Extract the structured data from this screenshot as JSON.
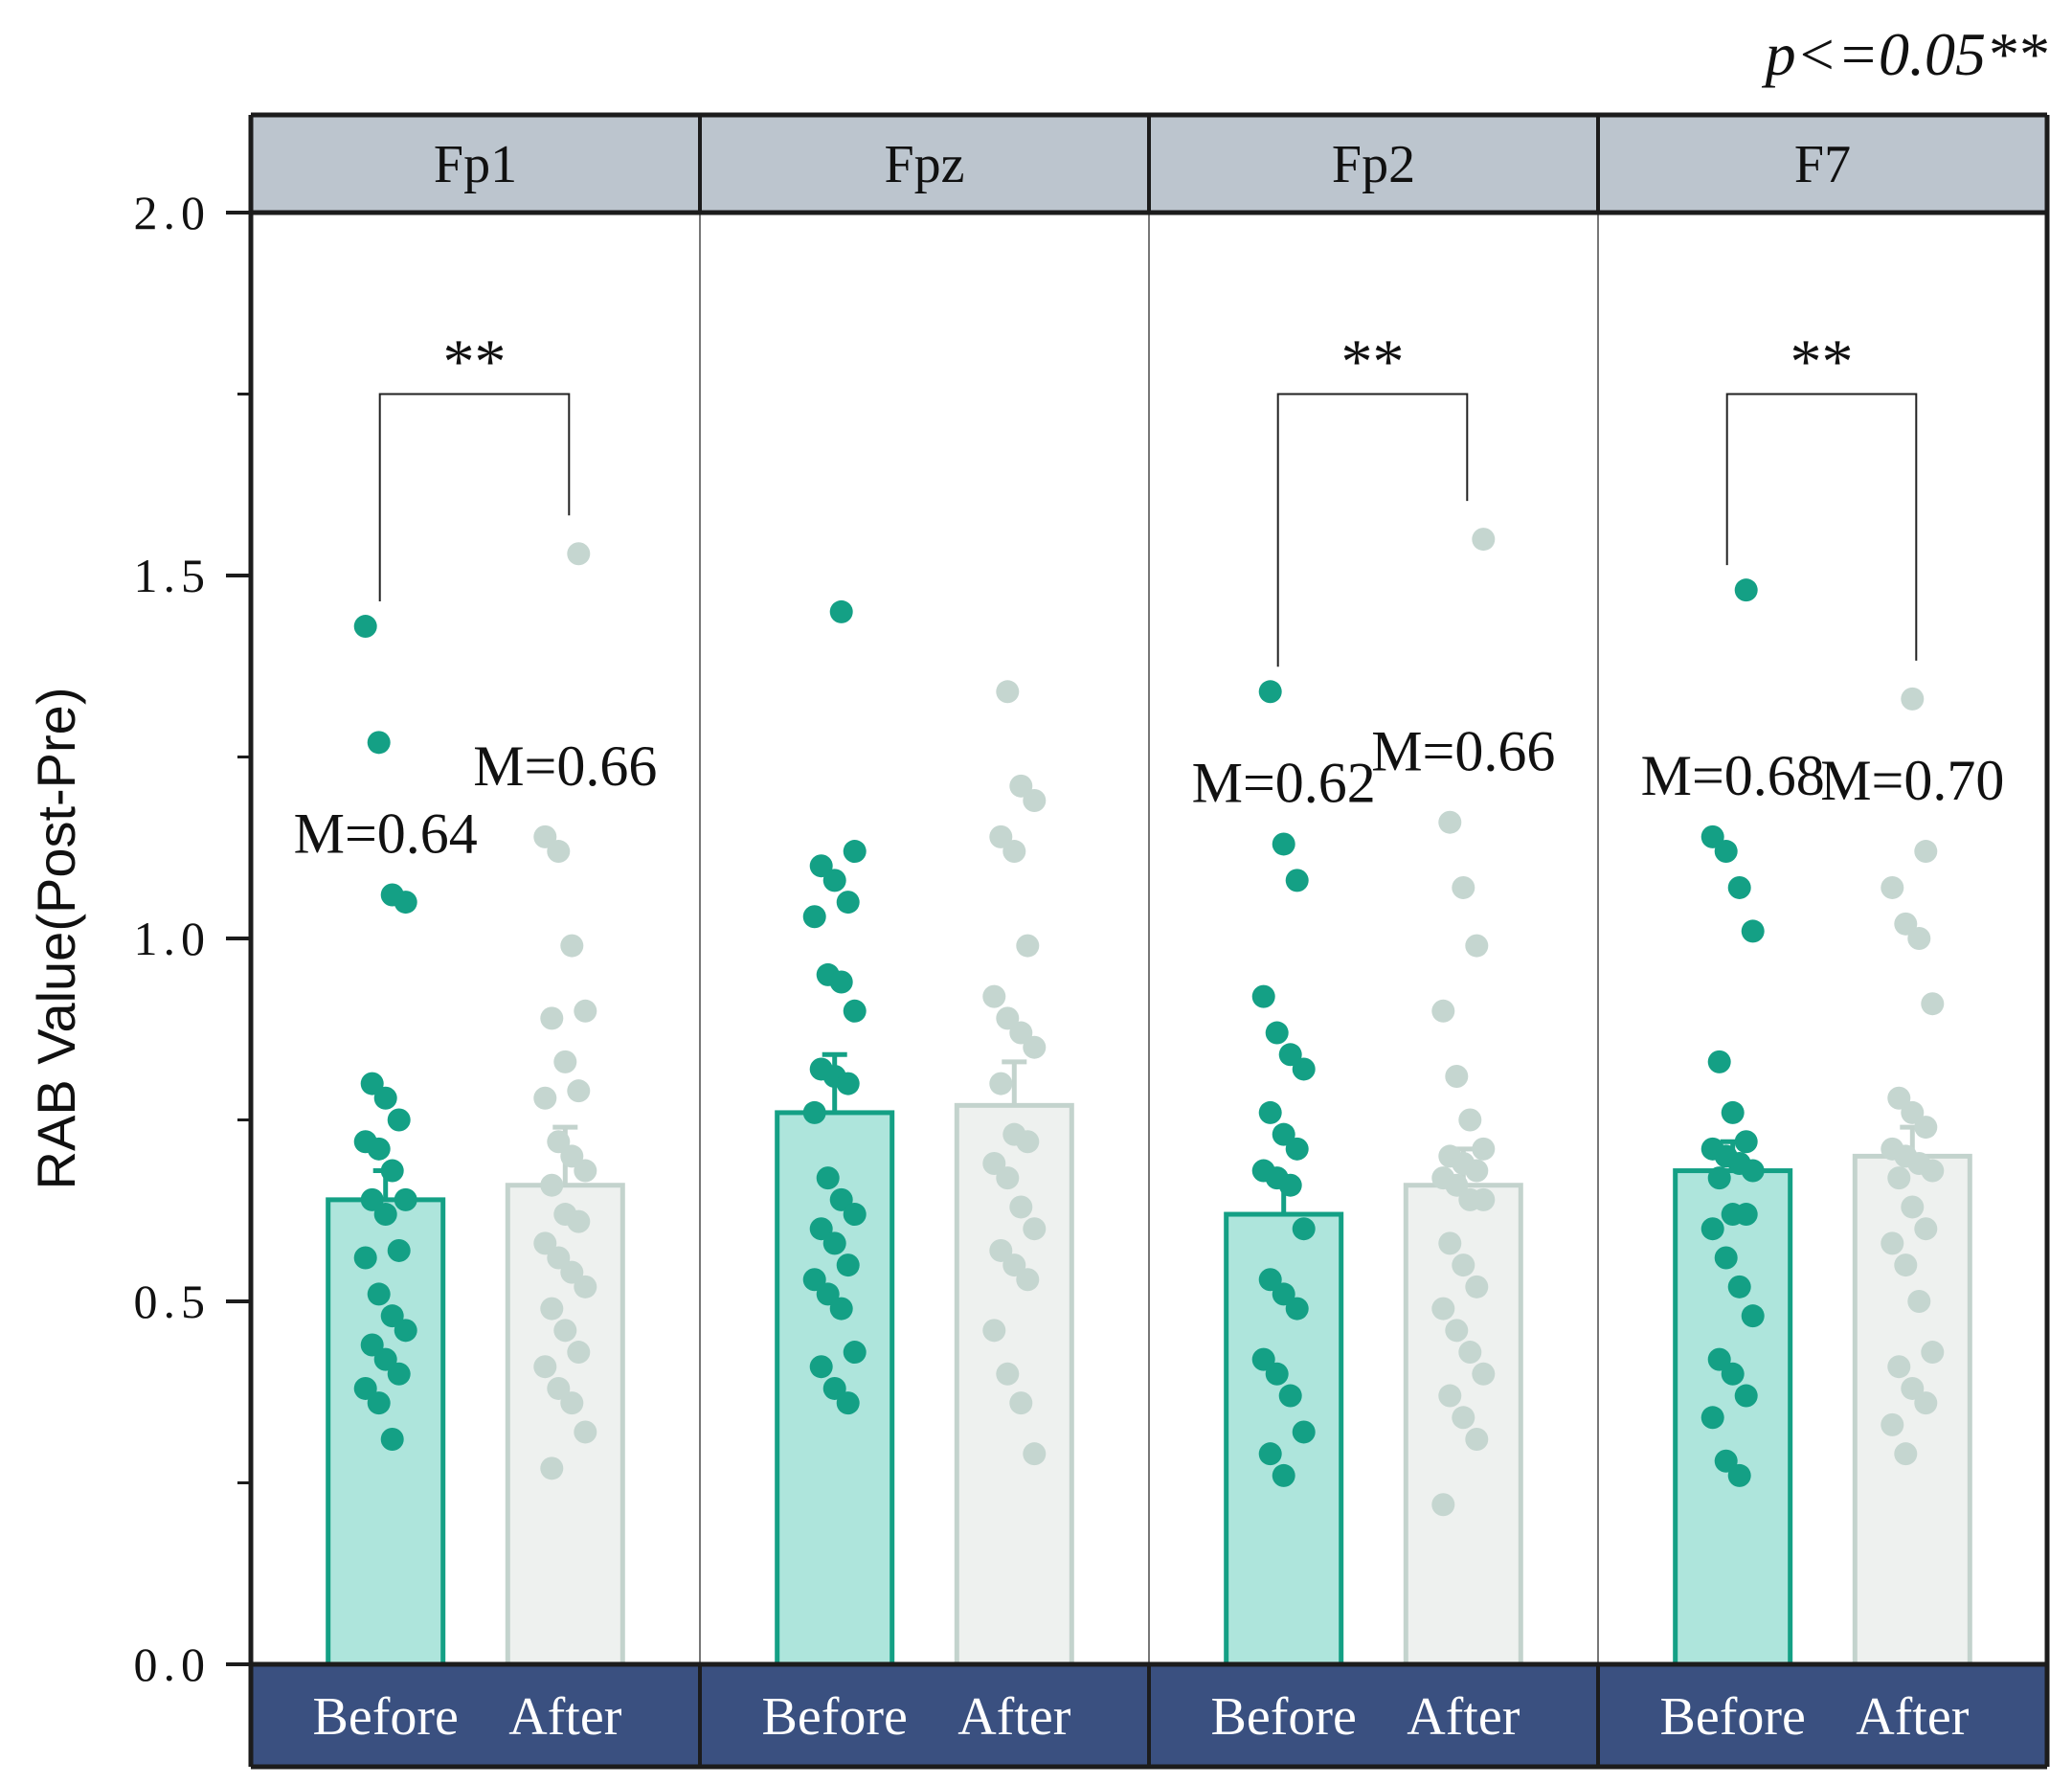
{
  "chart_data": {
    "type": "bar",
    "significance_note": "p<=0.05**",
    "ylabel": "RAB Value(Post-Pre)",
    "ylim": [
      0,
      2.0
    ],
    "y_ticks": [
      {
        "value": 0.0,
        "label": "0.0"
      },
      {
        "value": 0.5,
        "label": "0.5"
      },
      {
        "value": 1.0,
        "label": "1.0"
      },
      {
        "value": 1.5,
        "label": "1.5"
      },
      {
        "value": 2.0,
        "label": "2.0"
      }
    ],
    "grid": false,
    "colors": {
      "before_fill": "#aee5dc",
      "before_stroke": "#14a085",
      "before_dot": "#14a085",
      "after_fill": "#eef1ef",
      "after_stroke": "#c3d3cd",
      "after_dot": "#c5d6d0",
      "header_fill": "#bcc5ce",
      "footer_fill": "#3a5080",
      "footer_text": "#ffffff",
      "frame": "#1c1c1c"
    },
    "panels": [
      {
        "name": "Fp1",
        "significance": "**",
        "bars": [
          {
            "group": "Before",
            "mean": 0.64,
            "err": 0.04,
            "label": "M=0.64",
            "points": [
              1.43,
              1.27,
              1.06,
              1.05,
              0.8,
              0.78,
              0.75,
              0.72,
              0.71,
              0.68,
              0.64,
              0.64,
              0.62,
              0.57,
              0.56,
              0.51,
              0.48,
              0.46,
              0.44,
              0.42,
              0.4,
              0.38,
              0.36,
              0.31
            ]
          },
          {
            "group": "After",
            "mean": 0.66,
            "err": 0.08,
            "label": "M=0.66",
            "points": [
              1.53,
              1.14,
              1.12,
              0.99,
              0.9,
              0.89,
              0.83,
              0.79,
              0.78,
              0.72,
              0.7,
              0.68,
              0.66,
              0.62,
              0.61,
              0.58,
              0.56,
              0.54,
              0.52,
              0.49,
              0.46,
              0.43,
              0.41,
              0.38,
              0.36,
              0.32,
              0.27
            ]
          }
        ]
      },
      {
        "name": "Fpz",
        "significance": "",
        "bars": [
          {
            "group": "Before",
            "mean": 0.76,
            "err": 0.08,
            "label": "",
            "points": [
              1.45,
              1.12,
              1.1,
              1.08,
              1.05,
              1.03,
              0.95,
              0.94,
              0.9,
              0.82,
              0.81,
              0.8,
              0.76,
              0.67,
              0.64,
              0.62,
              0.6,
              0.58,
              0.55,
              0.53,
              0.51,
              0.49,
              0.43,
              0.41,
              0.38,
              0.36
            ]
          },
          {
            "group": "After",
            "mean": 0.77,
            "err": 0.06,
            "label": "",
            "points": [
              1.34,
              1.21,
              1.19,
              1.14,
              1.12,
              0.99,
              0.92,
              0.89,
              0.87,
              0.85,
              0.8,
              0.73,
              0.72,
              0.69,
              0.67,
              0.63,
              0.6,
              0.57,
              0.55,
              0.53,
              0.46,
              0.4,
              0.36,
              0.29
            ]
          }
        ]
      },
      {
        "name": "Fp2",
        "significance": "**",
        "bars": [
          {
            "group": "Before",
            "mean": 0.62,
            "err": 0.05,
            "label": "M=0.62",
            "points": [
              1.34,
              1.13,
              1.08,
              0.92,
              0.87,
              0.84,
              0.82,
              0.76,
              0.73,
              0.71,
              0.68,
              0.67,
              0.66,
              0.6,
              0.53,
              0.51,
              0.49,
              0.42,
              0.4,
              0.37,
              0.32,
              0.29,
              0.26
            ]
          },
          {
            "group": "After",
            "mean": 0.66,
            "err": 0.05,
            "label": "M=0.66",
            "points": [
              1.55,
              1.16,
              1.07,
              0.99,
              0.9,
              0.81,
              0.75,
              0.71,
              0.7,
              0.69,
              0.68,
              0.67,
              0.66,
              0.64,
              0.64,
              0.58,
              0.55,
              0.52,
              0.49,
              0.46,
              0.43,
              0.4,
              0.37,
              0.34,
              0.31,
              0.22
            ]
          }
        ]
      },
      {
        "name": "F7",
        "significance": "**",
        "bars": [
          {
            "group": "Before",
            "mean": 0.68,
            "err": 0.04,
            "label": "M=0.68",
            "points": [
              1.48,
              1.14,
              1.12,
              1.07,
              1.01,
              0.83,
              0.76,
              0.72,
              0.71,
              0.7,
              0.69,
              0.68,
              0.67,
              0.62,
              0.62,
              0.6,
              0.56,
              0.52,
              0.48,
              0.42,
              0.4,
              0.37,
              0.34,
              0.28,
              0.26
            ]
          },
          {
            "group": "After",
            "mean": 0.7,
            "err": 0.04,
            "label": "M=0.70",
            "points": [
              1.33,
              1.12,
              1.07,
              1.02,
              1.0,
              0.91,
              0.78,
              0.76,
              0.74,
              0.71,
              0.7,
              0.69,
              0.68,
              0.67,
              0.63,
              0.6,
              0.58,
              0.55,
              0.5,
              0.43,
              0.41,
              0.38,
              0.36,
              0.33,
              0.29
            ]
          }
        ]
      }
    ]
  }
}
